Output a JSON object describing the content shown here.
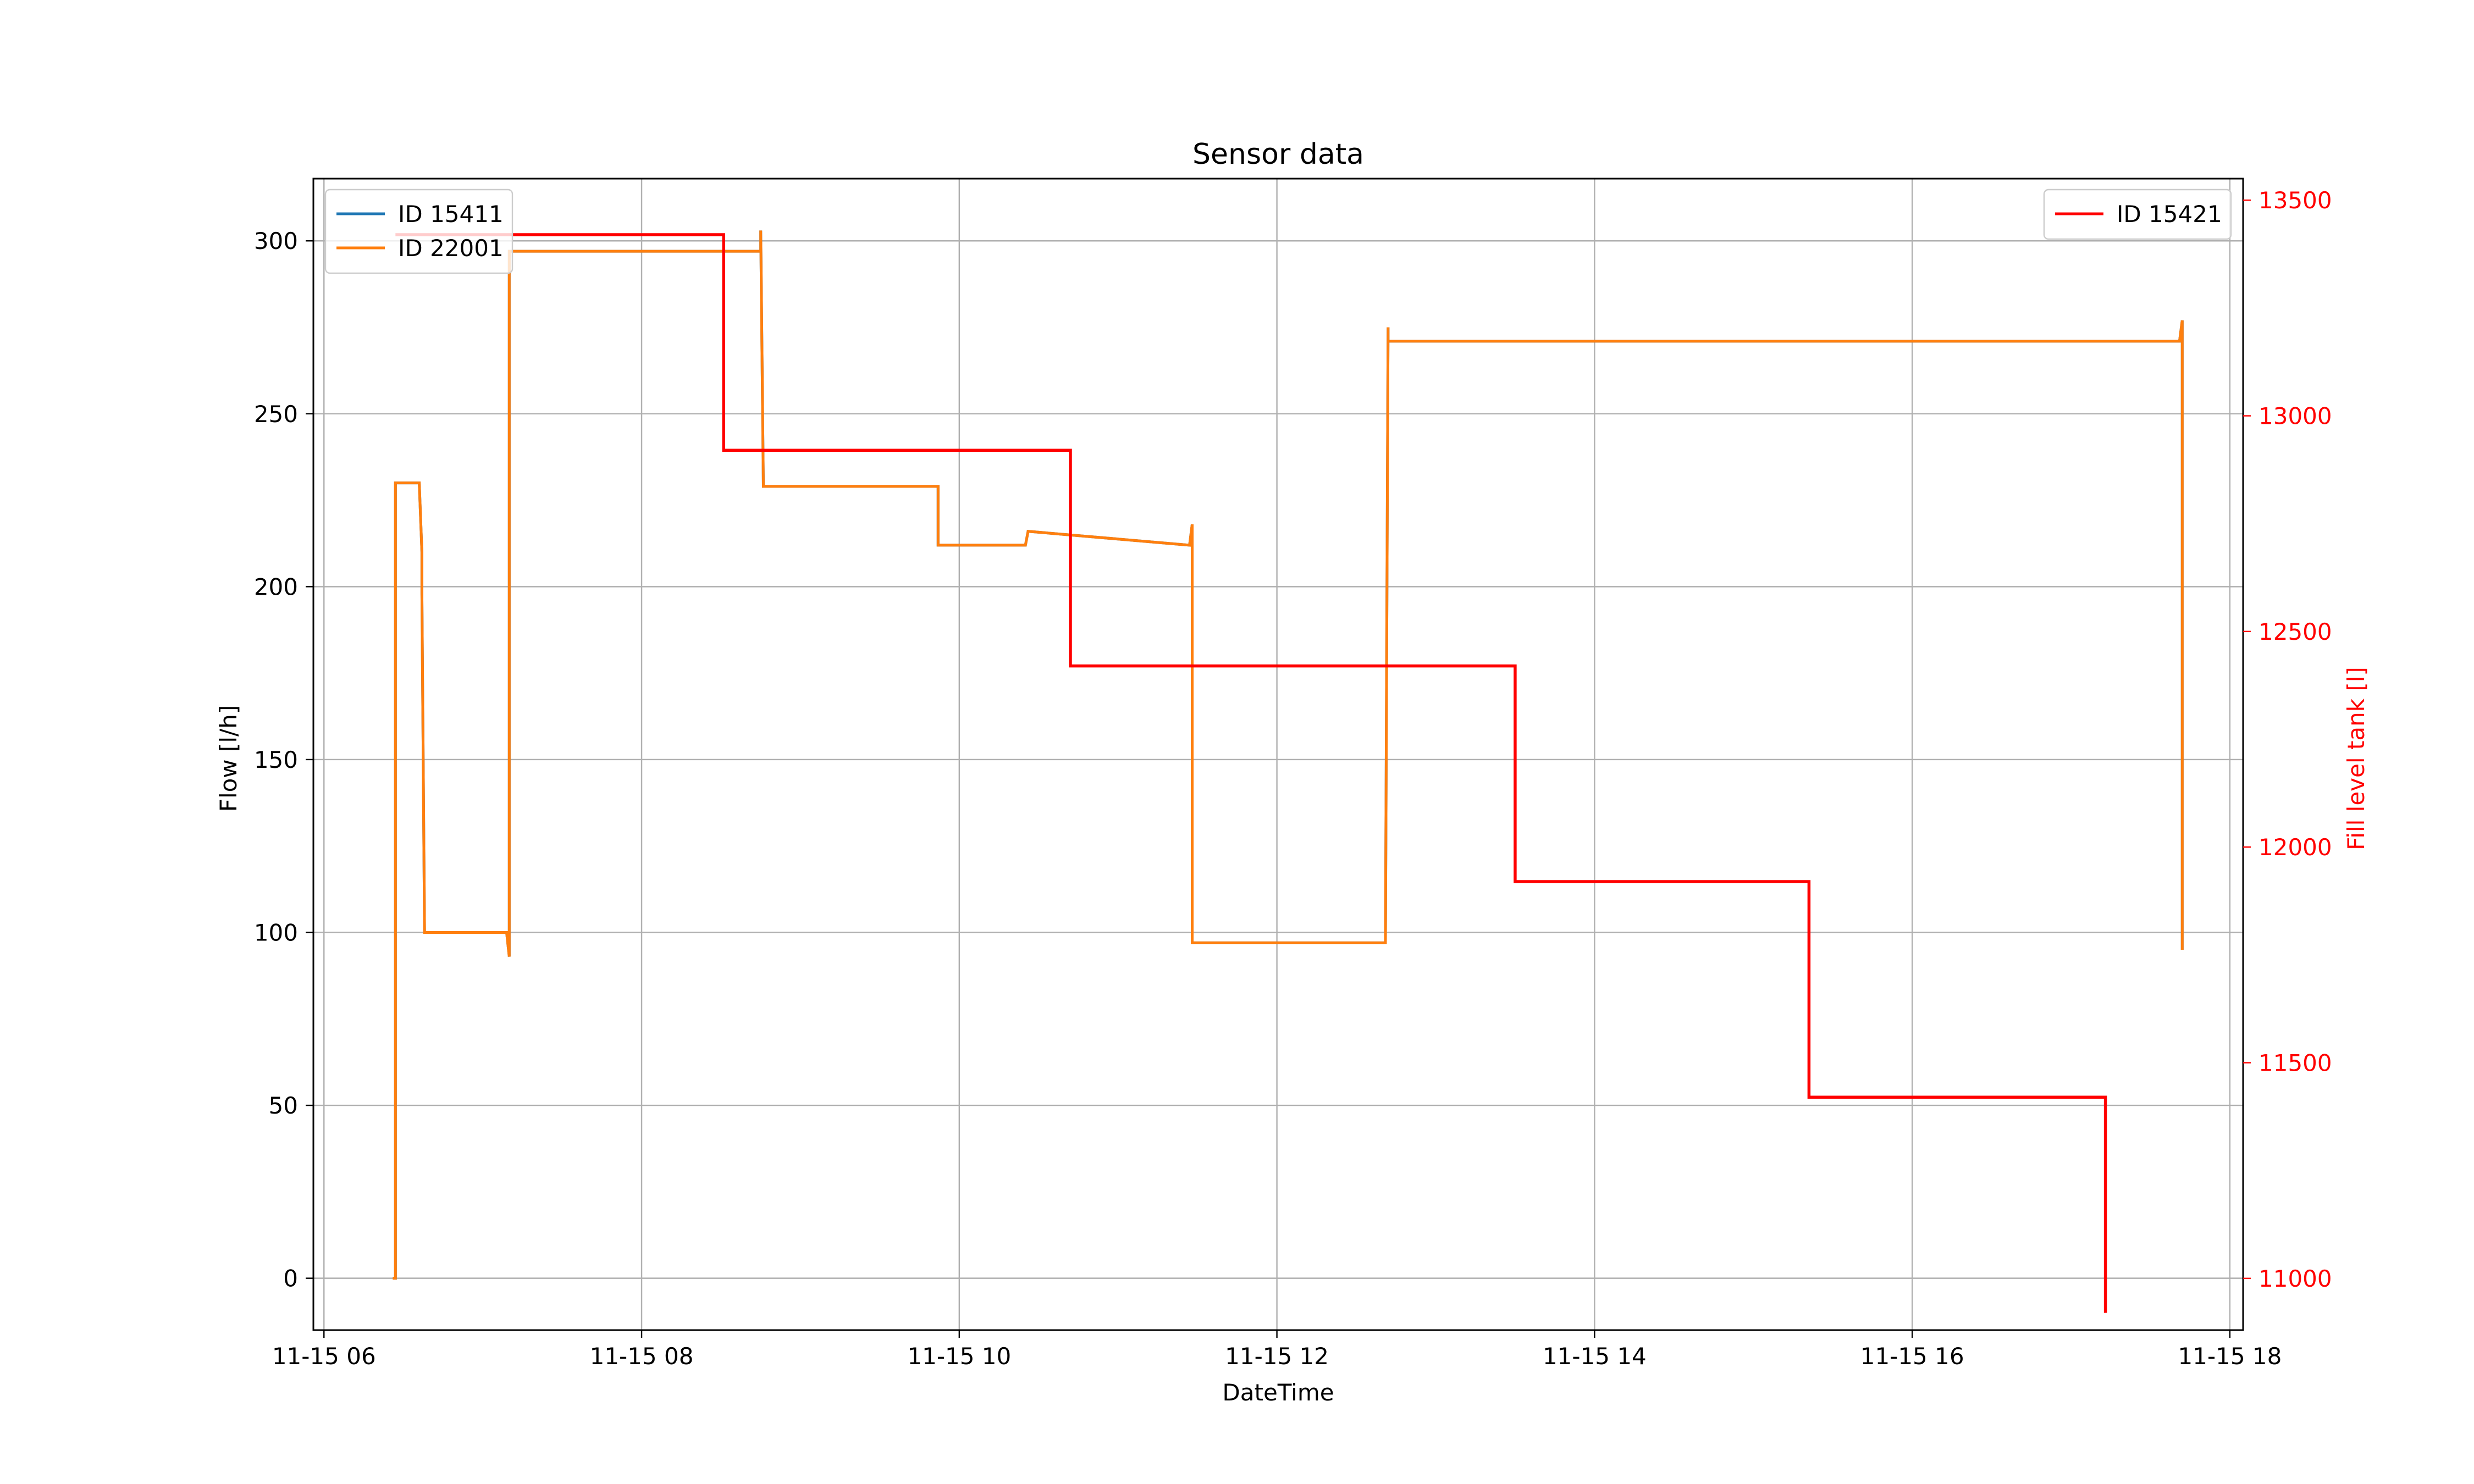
{
  "chart_data": {
    "type": "line",
    "title": "Sensor data",
    "xlabel": "DateTime",
    "ylabel": "Flow [l/h]",
    "y2label": "Fill level tank [l]",
    "xlim": [
      "2023-11-15 05:56",
      "2023-11-15 18:05"
    ],
    "ylim": [
      -15,
      318
    ],
    "y2lim": [
      10880,
      13550
    ],
    "xticks": [
      {
        "t": "2023-11-15 06:00",
        "label": "11-15 06"
      },
      {
        "t": "2023-11-15 08:00",
        "label": "11-15 08"
      },
      {
        "t": "2023-11-15 10:00",
        "label": "11-15 10"
      },
      {
        "t": "2023-11-15 12:00",
        "label": "11-15 12"
      },
      {
        "t": "2023-11-15 14:00",
        "label": "11-15 14"
      },
      {
        "t": "2023-11-15 16:00",
        "label": "11-15 16"
      },
      {
        "t": "2023-11-15 18:00",
        "label": "11-15 18"
      }
    ],
    "yticks": [
      0,
      50,
      100,
      150,
      200,
      250,
      300
    ],
    "y2ticks": [
      11000,
      11500,
      12000,
      12500,
      13000,
      13500
    ],
    "grid": true,
    "legends": [
      {
        "placement": "top-left",
        "entries": [
          "ID 15411",
          "ID 22001"
        ]
      },
      {
        "placement": "top-right",
        "entries": [
          "ID 15421"
        ]
      }
    ],
    "series": [
      {
        "name": "ID 15411",
        "axis": "left",
        "color": "#1f77b4",
        "x": [
          "2023-11-15 06:26",
          "2023-11-15 06:27",
          "2023-11-15 06:27",
          "2023-11-15 06:36",
          "2023-11-15 06:37",
          "2023-11-15 06:37",
          "2023-11-15 06:38",
          "2023-11-15 07:09",
          "2023-11-15 07:10",
          "2023-11-15 07:10",
          "2023-11-15 08:45",
          "2023-11-15 08:45",
          "2023-11-15 08:46",
          "2023-11-15 09:52",
          "2023-11-15 09:52",
          "2023-11-15 10:25",
          "2023-11-15 10:26",
          "2023-11-15 11:27",
          "2023-11-15 11:28",
          "2023-11-15 11:28",
          "2023-11-15 12:41",
          "2023-11-15 12:42",
          "2023-11-15 12:42",
          "2023-11-15 17:41",
          "2023-11-15 17:42",
          "2023-11-15 17:42"
        ],
        "y": [
          0,
          0,
          230,
          230,
          210,
          198,
          100,
          100,
          93,
          297,
          297,
          303,
          229,
          229,
          212,
          212,
          216,
          212,
          218,
          97,
          97,
          275,
          271,
          271,
          277,
          95
        ]
      },
      {
        "name": "ID 22001",
        "axis": "left",
        "color": "#ff7f0e",
        "x": [
          "2023-11-15 06:26",
          "2023-11-15 06:27",
          "2023-11-15 06:27",
          "2023-11-15 06:36",
          "2023-11-15 06:37",
          "2023-11-15 06:37",
          "2023-11-15 06:38",
          "2023-11-15 07:09",
          "2023-11-15 07:10",
          "2023-11-15 07:10",
          "2023-11-15 08:45",
          "2023-11-15 08:45",
          "2023-11-15 08:46",
          "2023-11-15 09:52",
          "2023-11-15 09:52",
          "2023-11-15 10:25",
          "2023-11-15 10:26",
          "2023-11-15 11:27",
          "2023-11-15 11:28",
          "2023-11-15 11:28",
          "2023-11-15 12:41",
          "2023-11-15 12:42",
          "2023-11-15 12:42",
          "2023-11-15 17:41",
          "2023-11-15 17:42",
          "2023-11-15 17:42"
        ],
        "y": [
          0,
          0,
          230,
          230,
          210,
          198,
          100,
          100,
          93,
          297,
          297,
          303,
          229,
          229,
          212,
          212,
          216,
          212,
          218,
          97,
          97,
          275,
          271,
          271,
          277,
          95
        ]
      },
      {
        "name": "ID 15421",
        "axis": "right",
        "color": "#ff0000",
        "x": [
          "2023-11-15 06:27",
          "2023-11-15 08:31",
          "2023-11-15 08:31",
          "2023-11-15 10:42",
          "2023-11-15 10:42",
          "2023-11-15 13:30",
          "2023-11-15 13:30",
          "2023-11-15 15:21",
          "2023-11-15 15:21",
          "2023-11-15 17:13",
          "2023-11-15 17:13"
        ],
        "y": [
          13420,
          13420,
          12920,
          12920,
          12420,
          12420,
          11920,
          11920,
          11420,
          11420,
          10920
        ]
      }
    ]
  }
}
